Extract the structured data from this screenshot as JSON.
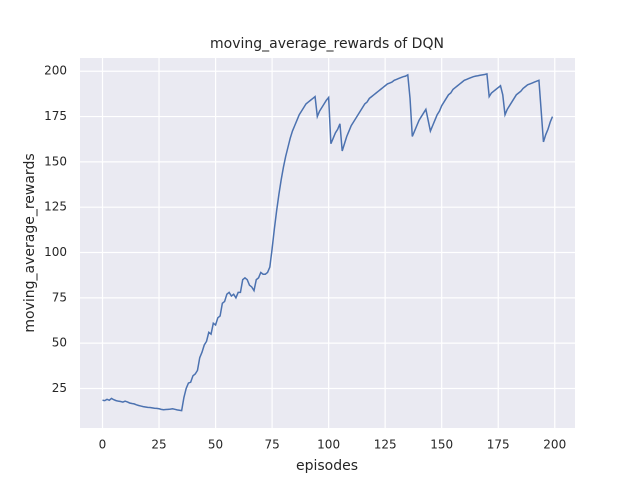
{
  "chart_data": {
    "type": "line",
    "title": "moving_average_rewards of DQN",
    "x_label": "episodes",
    "y_label": "moving_average_rewards",
    "x": [
      0,
      1,
      2,
      3,
      4,
      5,
      6,
      7,
      8,
      9,
      10,
      11,
      12,
      13,
      14,
      15,
      16,
      17,
      18,
      19,
      20,
      21,
      22,
      23,
      24,
      25,
      26,
      27,
      28,
      29,
      30,
      31,
      32,
      33,
      34,
      35,
      36,
      37,
      38,
      39,
      40,
      41,
      42,
      43,
      44,
      45,
      46,
      47,
      48,
      49,
      50,
      51,
      52,
      53,
      54,
      55,
      56,
      57,
      58,
      59,
      60,
      61,
      62,
      63,
      64,
      65,
      66,
      67,
      68,
      69,
      70,
      71,
      72,
      73,
      74,
      75,
      76,
      77,
      78,
      79,
      80,
      81,
      82,
      83,
      84,
      85,
      86,
      87,
      88,
      89,
      90,
      91,
      92,
      93,
      94,
      95,
      96,
      97,
      98,
      99,
      100,
      101,
      102,
      103,
      104,
      105,
      106,
      107,
      108,
      109,
      110,
      111,
      112,
      113,
      114,
      115,
      116,
      117,
      118,
      119,
      120,
      121,
      122,
      123,
      124,
      125,
      126,
      127,
      128,
      129,
      130,
      131,
      132,
      133,
      134,
      135,
      136,
      137,
      138,
      139,
      140,
      141,
      142,
      143,
      144,
      145,
      146,
      147,
      148,
      149,
      150,
      151,
      152,
      153,
      154,
      155,
      156,
      157,
      158,
      159,
      160,
      161,
      162,
      163,
      164,
      165,
      166,
      167,
      168,
      169,
      170,
      171,
      172,
      173,
      174,
      175,
      176,
      177,
      178,
      179,
      180,
      181,
      182,
      183,
      184,
      185,
      186,
      187,
      188,
      189,
      190,
      191,
      192,
      193,
      194,
      195,
      196,
      197,
      198,
      199
    ],
    "series": [
      {
        "color": "#4c72b0",
        "values": [
          18.5,
          18.3,
          19,
          18.5,
          19.5,
          18.8,
          18.3,
          18,
          17.8,
          17.5,
          18,
          17.6,
          17,
          16.7,
          16.5,
          16,
          15.6,
          15.3,
          15,
          14.8,
          14.6,
          14.5,
          14.3,
          14.1,
          14,
          13.8,
          13.5,
          13.3,
          13.4,
          13.5,
          13.6,
          13.8,
          13.5,
          13.2,
          13,
          12.8,
          20,
          25,
          28,
          28.5,
          32,
          33,
          35,
          42,
          45,
          49,
          51,
          56,
          55,
          61,
          60,
          64,
          65,
          72,
          73,
          77,
          78,
          76,
          77,
          75,
          78,
          78,
          85,
          86,
          85,
          82,
          81,
          79,
          85,
          86,
          89,
          88,
          88,
          89,
          92,
          102,
          113,
          123,
          132,
          140,
          147,
          153,
          158,
          163,
          167,
          170,
          173,
          176,
          178,
          180,
          182,
          183,
          184,
          185,
          186,
          175,
          178,
          180,
          182,
          184,
          185.5,
          160,
          163,
          166,
          168,
          171,
          156,
          160,
          164,
          167,
          170,
          172,
          174,
          176,
          178,
          180,
          182,
          183,
          185,
          186,
          187,
          188,
          189,
          190,
          191,
          192,
          193,
          193.5,
          194,
          195,
          195.5,
          196,
          196.5,
          197,
          197.3,
          198,
          185,
          164,
          167,
          170,
          173,
          175,
          177,
          179,
          173,
          167,
          170,
          173,
          176,
          178,
          181,
          183,
          185,
          187,
          188,
          190,
          191,
          192,
          193,
          194,
          195,
          195.5,
          196,
          196.5,
          197,
          197.3,
          197.5,
          197.8,
          198,
          198.2,
          198.5,
          186,
          188,
          189,
          190,
          191,
          192,
          187,
          176,
          179,
          181,
          183,
          185,
          187,
          188,
          189,
          190.5,
          191.5,
          192.5,
          193,
          193.5,
          194,
          194.5,
          195,
          178,
          161,
          165,
          168,
          172,
          175
        ]
      }
    ],
    "xlim": [
      -9.95,
      208.95
    ],
    "ylim": [
      3.2,
      207.3
    ],
    "xticks": [
      0,
      25,
      50,
      75,
      100,
      125,
      150,
      175,
      200
    ],
    "yticks": [
      25,
      50,
      75,
      100,
      125,
      150,
      175,
      200
    ],
    "grid": true
  }
}
